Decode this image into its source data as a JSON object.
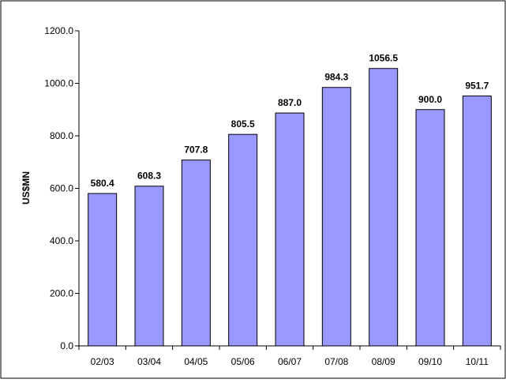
{
  "chart_data": {
    "type": "bar",
    "categories": [
      "02/03",
      "03/04",
      "04/05",
      "05/06",
      "06/07",
      "07/08",
      "08/09",
      "09/10",
      "10/11"
    ],
    "values": [
      580.4,
      608.3,
      707.8,
      805.5,
      887.0,
      984.3,
      1056.5,
      900.0,
      951.7
    ],
    "value_labels": [
      "580.4",
      "608.3",
      "707.8",
      "805.5",
      "887.0",
      "984.3",
      "1056.5",
      "900.0",
      "951.7"
    ],
    "title": "",
    "xlabel": "",
    "ylabel": "US$MN",
    "ylim": [
      0,
      1200
    ],
    "yticks": [
      0,
      200,
      400,
      600,
      800,
      1000,
      1200
    ],
    "ytick_labels": [
      "0.0",
      "200.0",
      "400.0",
      "600.0",
      "800.0",
      "1000.0",
      "1200.0"
    ],
    "grid": false,
    "legend": "none",
    "colors": {
      "bar_fill": "#9999ff",
      "bar_stroke": "#000000",
      "axis": "#000000",
      "text": "#000000",
      "frame": "#000000"
    }
  }
}
